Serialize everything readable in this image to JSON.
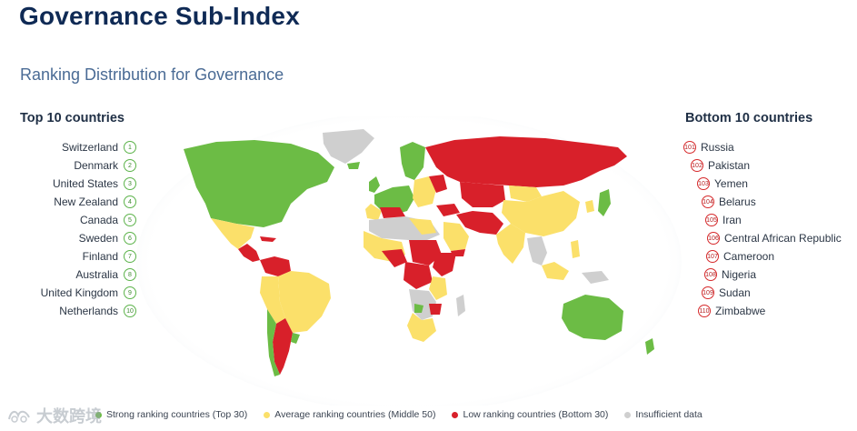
{
  "page": {
    "title": "Governance Sub-Index",
    "subtitle": "Ranking Distribution for Governance"
  },
  "top10": {
    "heading": "Top 10 countries",
    "items": [
      {
        "name": "Switzerland",
        "rank": "1"
      },
      {
        "name": "Denmark",
        "rank": "2"
      },
      {
        "name": "United States",
        "rank": "3"
      },
      {
        "name": "New Zealand",
        "rank": "4"
      },
      {
        "name": "Canada",
        "rank": "5"
      },
      {
        "name": "Sweden",
        "rank": "6"
      },
      {
        "name": "Finland",
        "rank": "7"
      },
      {
        "name": "Australia",
        "rank": "8"
      },
      {
        "name": "United Kingdom",
        "rank": "9"
      },
      {
        "name": "Netherlands",
        "rank": "10"
      }
    ]
  },
  "bottom10": {
    "heading": "Bottom 10 countries",
    "items": [
      {
        "name": "Russia",
        "rank": "101"
      },
      {
        "name": "Pakistan",
        "rank": "102"
      },
      {
        "name": "Yemen",
        "rank": "103"
      },
      {
        "name": "Belarus",
        "rank": "104"
      },
      {
        "name": "Iran",
        "rank": "105"
      },
      {
        "name": "Central African Republic",
        "rank": "106"
      },
      {
        "name": "Cameroon",
        "rank": "107"
      },
      {
        "name": "Nigeria",
        "rank": "108"
      },
      {
        "name": "Sudan",
        "rank": "109"
      },
      {
        "name": "Zimbabwe",
        "rank": "110"
      }
    ]
  },
  "legend": {
    "strong": "Strong ranking countries (Top 30)",
    "average": "Average ranking countries (Middle 50)",
    "low": "Low ranking countries (Bottom 30)",
    "insufficient": "Insufficient data"
  },
  "colors": {
    "strong": "#6cbc45",
    "average": "#fbe06a",
    "low": "#d8202a",
    "insufficient": "#cfcfcf",
    "title": "#0f2a55"
  },
  "watermark": {
    "icon": "watermark-logo-icon",
    "text": "大数跨境"
  }
}
